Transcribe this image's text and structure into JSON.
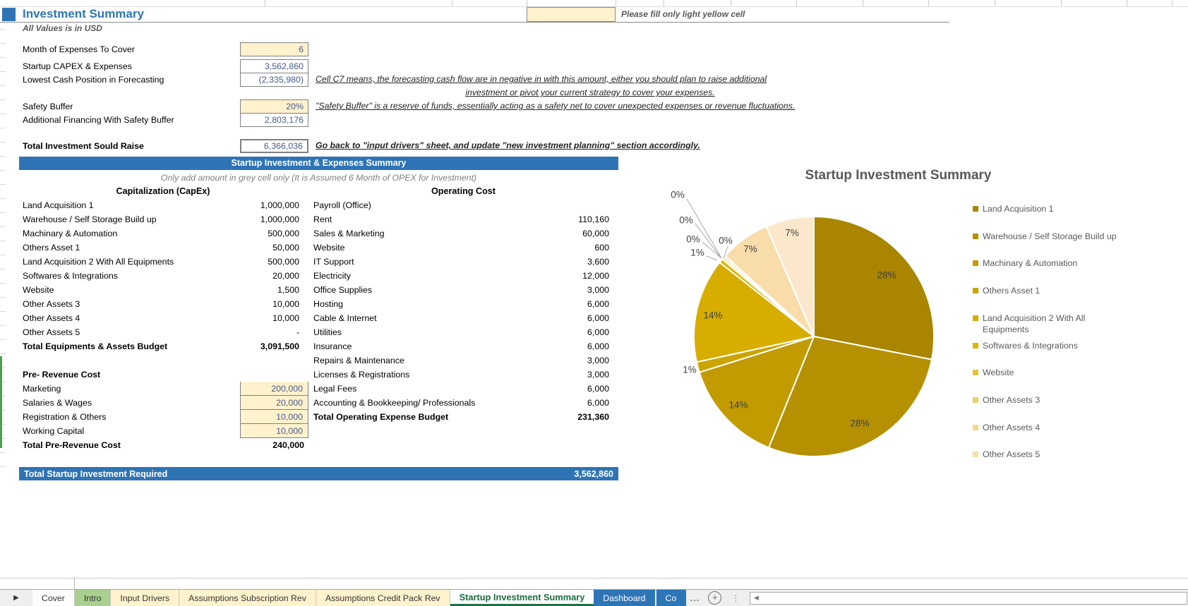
{
  "header": {
    "title": "Investment Summary",
    "subtitle": "All Values is in USD",
    "fill_note": "Please fill only light yellow cell"
  },
  "inputs": [
    {
      "label": "Month of Expenses To Cover",
      "value": "6",
      "style": "yellow"
    },
    {
      "label": "Startup CAPEX & Expenses",
      "value": "3,562,860",
      "style": "white"
    },
    {
      "label": "Lowest Cash Position in Forecasting",
      "value": "(2,335,980)",
      "style": "white"
    },
    {
      "label": "Safety Buffer",
      "value": "20%",
      "style": "yellow"
    },
    {
      "label": "Additional Financing With Safety Buffer",
      "value": "2,803,176",
      "style": "white"
    },
    {
      "label": "Total Investment Sould Raise",
      "value": "6,366,036",
      "style": "strong",
      "bold": true
    }
  ],
  "notes": {
    "cash_note_line1": "Cell C7 means, the forecasting cash flow are in negative in with this amount, either you should plan to raise additional",
    "cash_note_line2": "investment or pivot your current strategy to cover your expenses.",
    "buffer_note": "\"Safety Buffer\" is a reserve of funds, essentially acting as a safety net to cover unexpected expenses or revenue fluctuations.",
    "raise_note": "Go back to \"input drivers\" sheet, and update \"new investment planning\" section accordingly."
  },
  "sections": {
    "banner": "Startup Investment & Expenses Summary",
    "note": "Only add amount in grey cell only (It is Assumed 6 Month of OPEX for Investment)"
  },
  "capex": {
    "header": "Capitalization (CapEx)",
    "rows": [
      {
        "label": "Land Acquisition 1",
        "value": "1,000,000"
      },
      {
        "label": "Warehouse / Self Storage Build up",
        "value": "1,000,000"
      },
      {
        "label": "Machinary & Automation",
        "value": "500,000"
      },
      {
        "label": "Others Asset 1",
        "value": "50,000"
      },
      {
        "label": "Land Acquisition 2 With All Equipments",
        "value": "500,000"
      },
      {
        "label": "Softwares & Integrations",
        "value": "20,000"
      },
      {
        "label": "Website",
        "value": "1,500"
      },
      {
        "label": "Other Assets 3",
        "value": "10,000"
      },
      {
        "label": "Other Assets 4",
        "value": "10,000"
      },
      {
        "label": "Other Assets 5",
        "value": "-"
      }
    ],
    "total": {
      "label": "Total Equipments & Assets Budget",
      "value": "3,091,500"
    }
  },
  "prerevenue": {
    "header": "Pre- Revenue Cost",
    "rows": [
      {
        "label": "Marketing",
        "value": "200,000"
      },
      {
        "label": "Salaries & Wages",
        "value": "20,000"
      },
      {
        "label": "Registration & Others",
        "value": "10,000"
      },
      {
        "label": "Working Capital",
        "value": "10,000"
      }
    ],
    "total": {
      "label": "Total Pre-Revenue Cost",
      "value": "240,000"
    }
  },
  "opex": {
    "header": "Operating Cost",
    "rows": [
      {
        "label": "Payroll (Office)",
        "value": ""
      },
      {
        "label": "Rent",
        "value": "110,160"
      },
      {
        "label": "Sales & Marketing",
        "value": "60,000"
      },
      {
        "label": "Website",
        "value": "600"
      },
      {
        "label": "IT Support",
        "value": "3,600"
      },
      {
        "label": "Electricity",
        "value": "12,000"
      },
      {
        "label": "Office Supplies",
        "value": "3,000"
      },
      {
        "label": "Hosting",
        "value": "6,000"
      },
      {
        "label": "Cable & Internet",
        "value": "6,000"
      },
      {
        "label": "Utilities",
        "value": "6,000"
      },
      {
        "label": "Insurance",
        "value": "6,000"
      },
      {
        "label": "Repairs & Maintenance",
        "value": "3,000"
      },
      {
        "label": "Licenses & Registrations",
        "value": "3,000"
      },
      {
        "label": "Legal Fees",
        "value": "6,000"
      },
      {
        "label": "Accounting & Bookkeeping/ Professionals",
        "value": "6,000"
      }
    ],
    "total": {
      "label": "Total Operating Expense Budget",
      "value": "231,360"
    }
  },
  "total_bar": {
    "label": "Total Startup Investment Required",
    "value": "3,562,860"
  },
  "chart_data": {
    "type": "pie",
    "title": "Startup Investment Summary",
    "legend_position": "right",
    "total": 3562860,
    "slices": [
      {
        "label": "Land Acquisition 1",
        "value": 1000000,
        "pct": "28%",
        "color": "#A98500"
      },
      {
        "label": "Warehouse / Self Storage Build up",
        "value": 1000000,
        "pct": "28%",
        "color": "#B59000"
      },
      {
        "label": "Machinary & Automation",
        "value": 500000,
        "pct": "14%",
        "color": "#C19B00"
      },
      {
        "label": "Others Asset 1",
        "value": 50000,
        "pct": "1%",
        "color": "#CBA400"
      },
      {
        "label": "Land Acquisition 2 With All Equipments",
        "value": 500000,
        "pct": "14%",
        "color": "#D7AD00"
      },
      {
        "label": "Softwares & Integrations",
        "value": 20000,
        "pct": "1%",
        "color": "#E0B500"
      },
      {
        "label": "Website",
        "value": 1500,
        "pct": "0%",
        "color": "#E9C336"
      },
      {
        "label": "Other Assets 3",
        "value": 10000,
        "pct": "0%",
        "color": "#F0CF68"
      },
      {
        "label": "Other Assets 4",
        "value": 10000,
        "pct": "0%",
        "color": "#F5D98C"
      },
      {
        "label": "Other Assets 5",
        "value": 0,
        "pct": "0%",
        "color": "#F8E1A8"
      },
      {
        "label": "Total Pre-Revenue Cost",
        "value": 240000,
        "pct": "7%",
        "color": "#F8DCA9",
        "in_legend": false
      },
      {
        "label": "Total Operating Expense Budget",
        "value": 231360,
        "pct": "7%",
        "color": "#FBE8CC",
        "in_legend": false
      }
    ]
  },
  "sheet_tabs": [
    {
      "label": "Cover",
      "style": "plain"
    },
    {
      "label": "Intro",
      "style": "green"
    },
    {
      "label": "Input Drivers",
      "style": "yellow"
    },
    {
      "label": "Assumptions Subscription Rev",
      "style": "yellow"
    },
    {
      "label": "Assumptions Credit Pack Rev",
      "style": "yellow"
    },
    {
      "label": "Startup Investment Summary",
      "style": "active"
    },
    {
      "label": "Dashboard",
      "style": "blue"
    },
    {
      "label": "Co",
      "style": "blue cut"
    }
  ],
  "icons": {
    "tab_nav": "▶",
    "scroll_left": "◀",
    "add_sheet": "+",
    "more": "...",
    "drag": "⋮"
  },
  "colors": {
    "accent_blue": "#2E74B5",
    "input_yellow": "#FFF2CC",
    "active_tab_green": "#1E7145",
    "tab_blue": "#2E75B6"
  }
}
